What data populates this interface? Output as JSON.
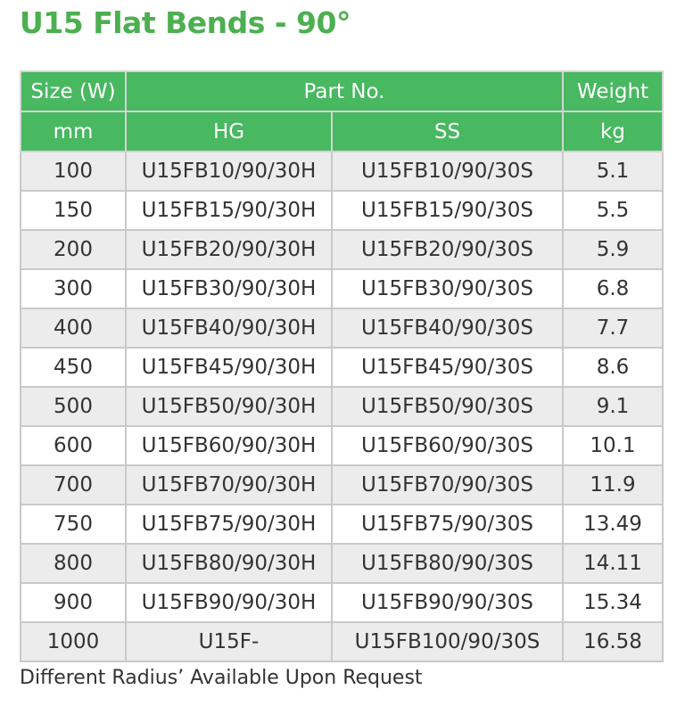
{
  "title": "U15 Flat Bends - 90°",
  "header": {
    "size_label": "Size (W)",
    "part_no_label": "Part No.",
    "weight_label": "Weight",
    "size_unit": "mm",
    "hg_label": "HG",
    "ss_label": "SS",
    "weight_unit": "kg"
  },
  "rows": [
    {
      "size": "100",
      "hg": "U15FB10/90/30H",
      "ss": "U15FB10/90/30S",
      "weight": "5.1"
    },
    {
      "size": "150",
      "hg": "U15FB15/90/30H",
      "ss": "U15FB15/90/30S",
      "weight": "5.5"
    },
    {
      "size": "200",
      "hg": "U15FB20/90/30H",
      "ss": "U15FB20/90/30S",
      "weight": "5.9"
    },
    {
      "size": "300",
      "hg": "U15FB30/90/30H",
      "ss": "U15FB30/90/30S",
      "weight": "6.8"
    },
    {
      "size": "400",
      "hg": "U15FB40/90/30H",
      "ss": "U15FB40/90/30S",
      "weight": "7.7"
    },
    {
      "size": "450",
      "hg": "U15FB45/90/30H",
      "ss": "U15FB45/90/30S",
      "weight": "8.6"
    },
    {
      "size": "500",
      "hg": "U15FB50/90/30H",
      "ss": "U15FB50/90/30S",
      "weight": "9.1"
    },
    {
      "size": "600",
      "hg": "U15FB60/90/30H",
      "ss": "U15FB60/90/30S",
      "weight": "10.1"
    },
    {
      "size": "700",
      "hg": "U15FB70/90/30H",
      "ss": "U15FB70/90/30S",
      "weight": "11.9"
    },
    {
      "size": "750",
      "hg": "U15FB75/90/30H",
      "ss": "U15FB75/90/30S",
      "weight": "13.49"
    },
    {
      "size": "800",
      "hg": "U15FB80/90/30H",
      "ss": "U15FB80/90/30S",
      "weight": "14.11"
    },
    {
      "size": "900",
      "hg": "U15FB90/90/30H",
      "ss": "U15FB90/90/30S",
      "weight": "15.34"
    },
    {
      "size": "1000",
      "hg": "U15F-",
      "ss": "U15FB100/90/30S",
      "weight": "16.58"
    }
  ],
  "footnote": "Different Radius’ Available Upon Request",
  "colors": {
    "accent": "#4caf50",
    "header_bg": "#48b861",
    "stripe_bg": "#ececec"
  }
}
